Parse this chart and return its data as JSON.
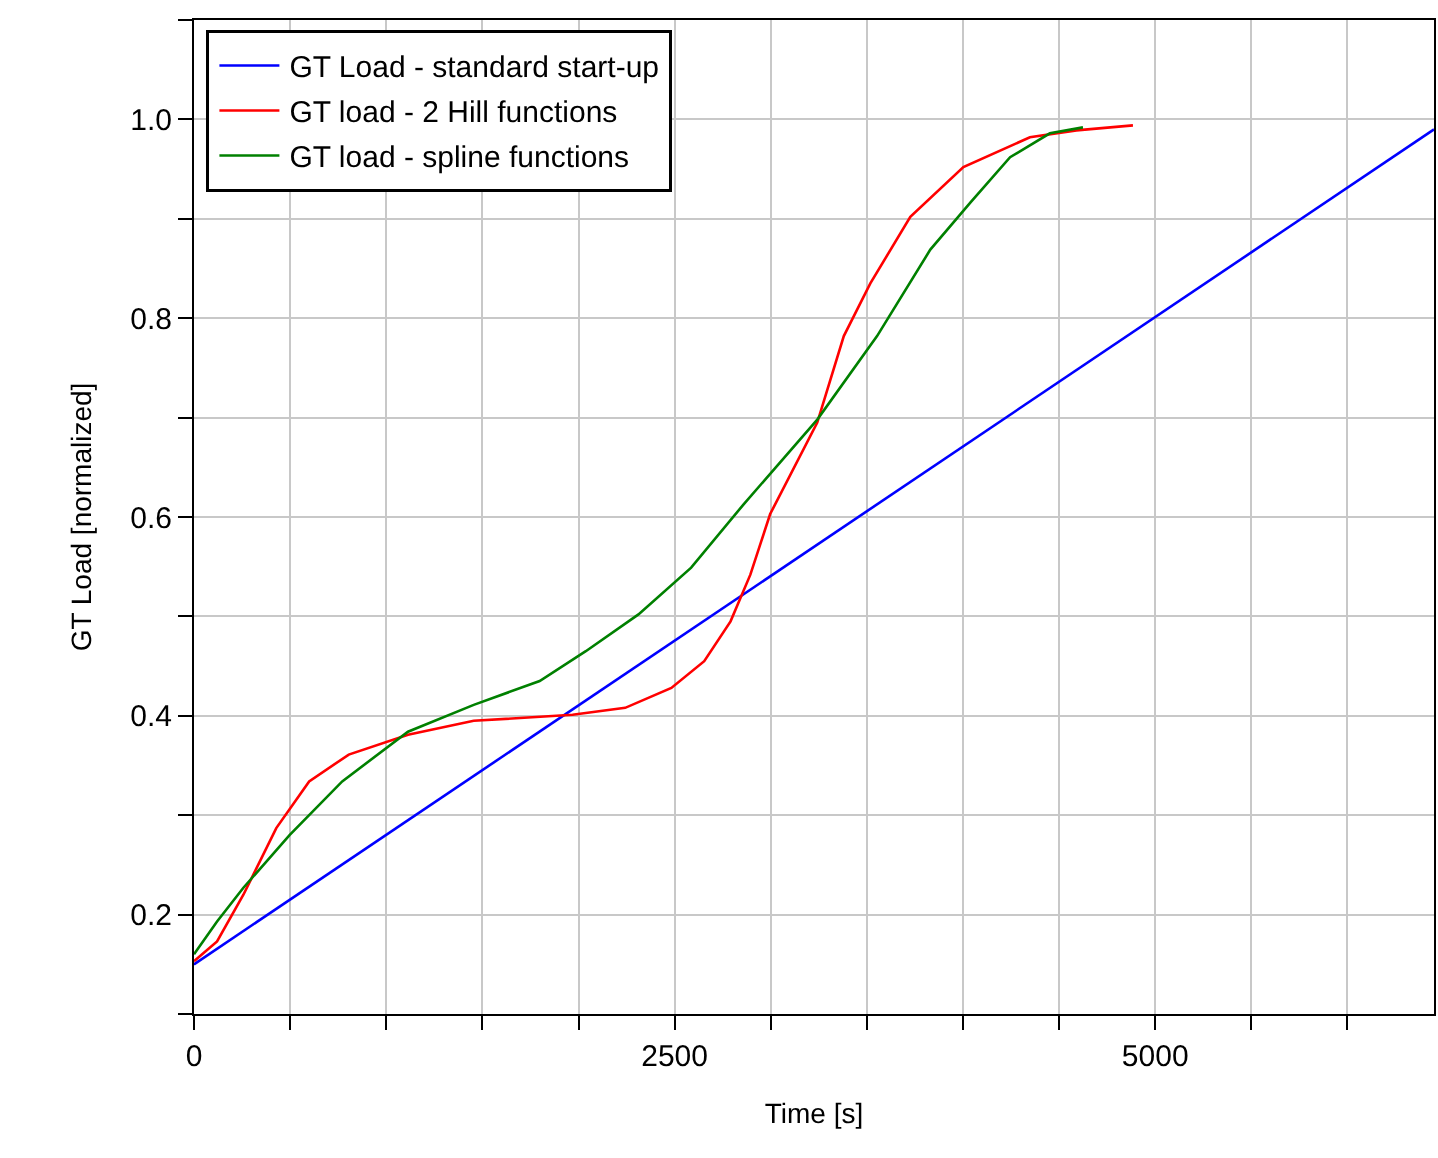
{
  "chart_data": {
    "type": "line",
    "xlabel": "Time [s]",
    "ylabel": "GT Load [normalized]",
    "xlim": [
      0,
      6450
    ],
    "ylim": [
      0.1,
      1.1
    ],
    "xticks": [
      0,
      {
        "value": 500,
        "label": null
      },
      {
        "value": 1000,
        "label": null
      },
      {
        "value": 1500,
        "label": null
      },
      {
        "value": 2000,
        "label": null
      },
      2500,
      {
        "value": 3000,
        "label": null
      },
      {
        "value": 3500,
        "label": null
      },
      {
        "value": 4000,
        "label": null
      },
      {
        "value": 4500,
        "label": null
      },
      5000,
      {
        "value": 5500,
        "label": null
      },
      {
        "value": 6000,
        "label": null
      }
    ],
    "yticks": [
      {
        "value": 0.1,
        "label": null
      },
      {
        "value": 0.2,
        "label": "0.2"
      },
      {
        "value": 0.3,
        "label": null
      },
      {
        "value": 0.4,
        "label": "0.4"
      },
      {
        "value": 0.5,
        "label": null
      },
      {
        "value": 0.6,
        "label": "0.6"
      },
      {
        "value": 0.7,
        "label": null
      },
      {
        "value": 0.8,
        "label": "0.8"
      },
      {
        "value": 0.9,
        "label": null
      },
      {
        "value": 1.0,
        "label": "1.0"
      },
      {
        "value": 1.1,
        "label": null
      }
    ],
    "grid": true,
    "legend": "top left",
    "marker": "none",
    "line_style": "solid",
    "series": [
      {
        "name": "GT Load - standard start-up",
        "color": "#0000ff",
        "x": [
          0,
          6450
        ],
        "values": [
          0.15,
          0.99
        ]
      },
      {
        "name": "GT load - 2 Hill functions",
        "color": "#ff0000",
        "x": [
          0,
          120,
          257,
          428,
          599,
          805,
          1113,
          1455,
          1969,
          2243,
          2483,
          2654,
          2791,
          2894,
          2997,
          3242,
          3380,
          3518,
          3726,
          4002,
          4348,
          4590,
          4884
        ],
        "values": [
          0.153,
          0.173,
          0.22,
          0.287,
          0.334,
          0.361,
          0.381,
          0.395,
          0.401,
          0.408,
          0.428,
          0.455,
          0.495,
          0.542,
          0.603,
          0.695,
          0.782,
          0.835,
          0.902,
          0.952,
          0.982,
          0.989,
          0.994
        ]
      },
      {
        "name": "GT load - spline functions",
        "color": "#008000",
        "x": [
          0,
          120,
          257,
          497,
          771,
          1113,
          1455,
          1798,
          2038,
          2312,
          2586,
          2860,
          3242,
          3553,
          3830,
          4037,
          4245,
          4452,
          4624
        ],
        "values": [
          0.16,
          0.193,
          0.227,
          0.28,
          0.334,
          0.384,
          0.411,
          0.435,
          0.465,
          0.502,
          0.549,
          0.613,
          0.698,
          0.782,
          0.869,
          0.916,
          0.962,
          0.986,
          0.992
        ]
      }
    ]
  }
}
